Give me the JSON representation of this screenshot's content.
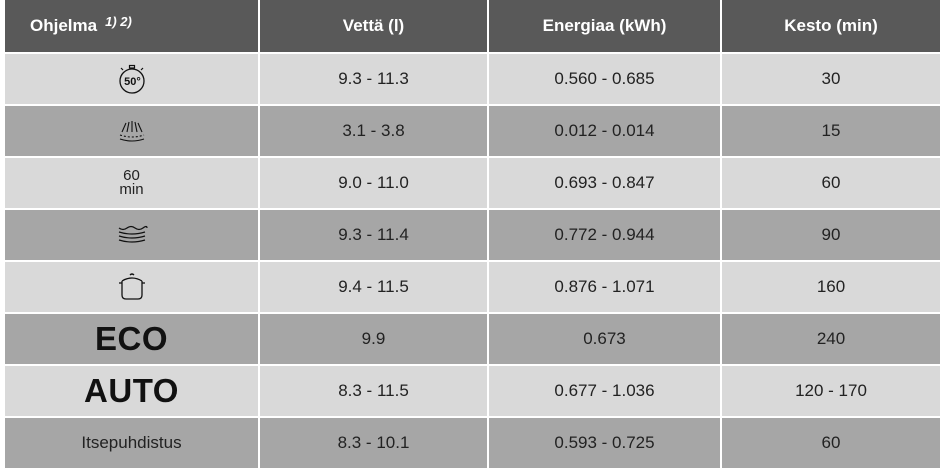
{
  "table": {
    "headers": {
      "program": "Ohjelma",
      "program_note": "1) 2)",
      "water": "Vettä (l)",
      "energy": "Energiaa (kWh)",
      "duration": "Kesto (min)"
    },
    "rows": [
      {
        "program_icon": "quick-50-stopwatch-icon",
        "water": "9.3 - 11.3",
        "energy": "0.560 - 0.685",
        "duration": "30",
        "shade": "#d9d9d9"
      },
      {
        "program_icon": "rinse-shower-icon",
        "water": "3.1 - 3.8",
        "energy": "0.012 - 0.014",
        "duration": "15",
        "shade": "#a6a6a6"
      },
      {
        "program_top": "60",
        "program_bottom": "min",
        "water": "9.0 - 11.0",
        "energy": "0.693 - 0.847",
        "duration": "60",
        "shade": "#d9d9d9"
      },
      {
        "program_icon": "glass-waves-icon",
        "water": "9.3 - 11.4",
        "energy": "0.772 - 0.944",
        "duration": "90",
        "shade": "#a6a6a6"
      },
      {
        "program_icon": "pot-icon",
        "water": "9.4 - 11.5",
        "energy": "0.876 - 1.071",
        "duration": "160",
        "shade": "#d9d9d9"
      },
      {
        "program_label": "ECO",
        "water": "9.9",
        "energy": "0.673",
        "duration": "240",
        "shade": "#a6a6a6"
      },
      {
        "program_label": "AUTO",
        "water": "8.3 - 11.5",
        "energy": "0.677 - 1.036",
        "duration": "120 - 170",
        "shade": "#d9d9d9"
      },
      {
        "program_label": "Itsepuhdistus",
        "water": "8.3 - 10.1",
        "energy": "0.593 - 0.725",
        "duration": "60",
        "shade": "#a6a6a6"
      }
    ],
    "quick_icon_text": "50°"
  }
}
